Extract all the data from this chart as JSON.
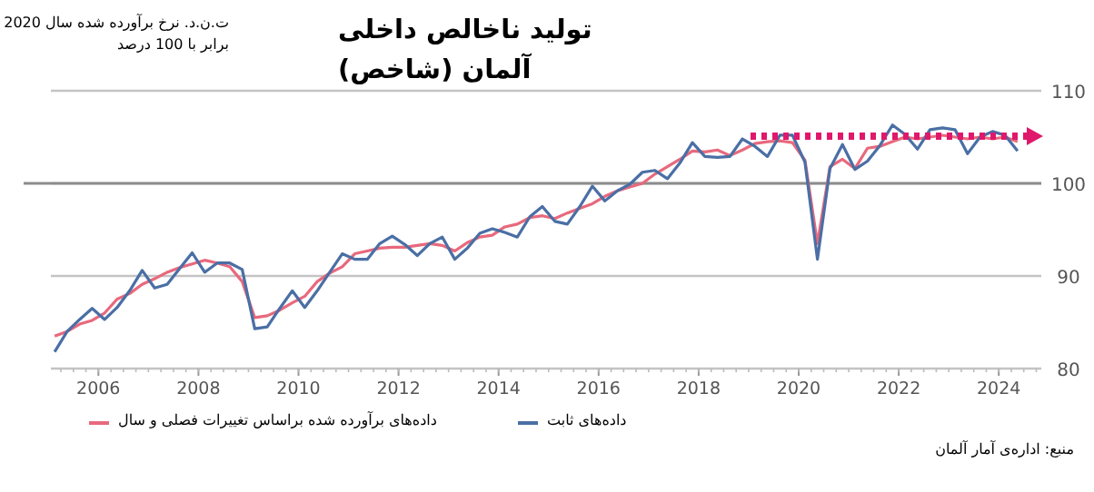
{
  "chart_data": {
    "type": "line",
    "title": "تولید ناخالص داخلی آلمان (شاخص)",
    "subtitle": "ت.ن.د. نرخ برآورده شده سال 2020 برابر با 100 درصد",
    "annotations": [
      "منبع: اداره‌ی آمار آلمان"
    ],
    "xlim": [
      2005.05,
      2024.85
    ],
    "xticks": [
      2006,
      2008,
      2010,
      2012,
      2014,
      2016,
      2018,
      2020,
      2022,
      2024
    ],
    "ylim": [
      80,
      110
    ],
    "yticks": [
      80,
      90,
      100,
      110
    ],
    "grid": "y",
    "legend": "bottom",
    "marker": "none",
    "ref_lines": [
      {
        "axis": "y",
        "value": 100,
        "color": "#8c8c8c"
      }
    ],
    "series": [
      {
        "name": "داده‌های برآورده شده براساس تغییرات فصلی و سال",
        "color": "#e8697d",
        "line_style": "solid",
        "x": [
          2005.125,
          2005.375,
          2005.625,
          2005.875,
          2006.125,
          2006.375,
          2006.625,
          2006.875,
          2007.125,
          2007.375,
          2007.625,
          2007.875,
          2008.125,
          2008.375,
          2008.625,
          2008.875,
          2009.125,
          2009.375,
          2009.625,
          2009.875,
          2010.125,
          2010.375,
          2010.625,
          2010.875,
          2011.125,
          2011.375,
          2011.625,
          2011.875,
          2012.125,
          2012.375,
          2012.625,
          2012.875,
          2013.125,
          2013.375,
          2013.625,
          2013.875,
          2014.125,
          2014.375,
          2014.625,
          2014.875,
          2015.125,
          2015.375,
          2015.625,
          2015.875,
          2016.125,
          2016.375,
          2016.625,
          2016.875,
          2017.125,
          2017.375,
          2017.625,
          2017.875,
          2018.125,
          2018.375,
          2018.625,
          2018.875,
          2019.125,
          2019.375,
          2019.625,
          2019.875,
          2020.125,
          2020.375,
          2020.625,
          2020.875,
          2021.125,
          2021.375,
          2021.625,
          2021.875,
          2022.125,
          2022.375,
          2022.625,
          2022.875,
          2023.125,
          2023.375,
          2023.625,
          2023.875,
          2024.125,
          2024.375
        ],
        "values": [
          83.5,
          84.0,
          84.8,
          85.2,
          86.0,
          87.5,
          88.1,
          89.1,
          89.7,
          90.4,
          90.9,
          91.3,
          91.7,
          91.4,
          91.0,
          89.4,
          85.5,
          85.7,
          86.3,
          87.1,
          87.8,
          89.4,
          90.3,
          91.0,
          92.4,
          92.7,
          93.0,
          93.1,
          93.1,
          93.3,
          93.5,
          93.3,
          92.7,
          93.6,
          94.2,
          94.4,
          95.3,
          95.6,
          96.3,
          96.5,
          96.2,
          96.8,
          97.3,
          97.8,
          98.6,
          99.2,
          99.6,
          100.0,
          101.0,
          101.8,
          102.6,
          103.5,
          103.4,
          103.6,
          103.0,
          103.6,
          104.3,
          104.5,
          104.6,
          104.4,
          102.5,
          93.5,
          101.8,
          102.6,
          101.6,
          103.8,
          104.0,
          104.5,
          105.0,
          104.8,
          105.0,
          105.2,
          105.0,
          104.8,
          105.0,
          104.8,
          105.0,
          104.5
        ]
      },
      {
        "name": "داده‌های ثابت",
        "color": "#4a6fa5",
        "line_style": "solid",
        "x": [
          2005.125,
          2005.375,
          2005.625,
          2005.875,
          2006.125,
          2006.375,
          2006.625,
          2006.875,
          2007.125,
          2007.375,
          2007.625,
          2007.875,
          2008.125,
          2008.375,
          2008.625,
          2008.875,
          2009.125,
          2009.375,
          2009.625,
          2009.875,
          2010.125,
          2010.375,
          2010.625,
          2010.875,
          2011.125,
          2011.375,
          2011.625,
          2011.875,
          2012.125,
          2012.375,
          2012.625,
          2012.875,
          2013.125,
          2013.375,
          2013.625,
          2013.875,
          2014.125,
          2014.375,
          2014.625,
          2014.875,
          2015.125,
          2015.375,
          2015.625,
          2015.875,
          2016.125,
          2016.375,
          2016.625,
          2016.875,
          2017.125,
          2017.375,
          2017.625,
          2017.875,
          2018.125,
          2018.375,
          2018.625,
          2018.875,
          2019.125,
          2019.375,
          2019.625,
          2019.875,
          2020.125,
          2020.375,
          2020.625,
          2020.875,
          2021.125,
          2021.375,
          2021.625,
          2021.875,
          2022.125,
          2022.375,
          2022.625,
          2022.875,
          2023.125,
          2023.375,
          2023.625,
          2023.875,
          2024.125,
          2024.375
        ],
        "values": [
          81.8,
          84.0,
          85.3,
          86.5,
          85.3,
          86.6,
          88.4,
          90.6,
          88.7,
          89.1,
          90.8,
          92.5,
          90.4,
          91.4,
          91.4,
          90.7,
          84.3,
          84.5,
          86.5,
          88.4,
          86.6,
          88.4,
          90.4,
          92.4,
          91.8,
          91.8,
          93.5,
          94.3,
          93.4,
          92.2,
          93.5,
          94.2,
          91.8,
          93.0,
          94.6,
          95.1,
          94.7,
          94.2,
          96.4,
          97.5,
          95.9,
          95.6,
          97.5,
          99.7,
          98.1,
          99.2,
          99.9,
          101.2,
          101.4,
          100.5,
          102.2,
          104.4,
          102.9,
          102.8,
          102.9,
          104.8,
          104.0,
          102.9,
          105.2,
          105.2,
          102.3,
          91.8,
          101.6,
          104.2,
          101.5,
          102.4,
          104.1,
          106.3,
          105.3,
          103.7,
          105.8,
          106.0,
          105.8,
          103.2,
          105.0,
          105.6,
          105.2,
          103.5
        ]
      }
    ]
  }
}
